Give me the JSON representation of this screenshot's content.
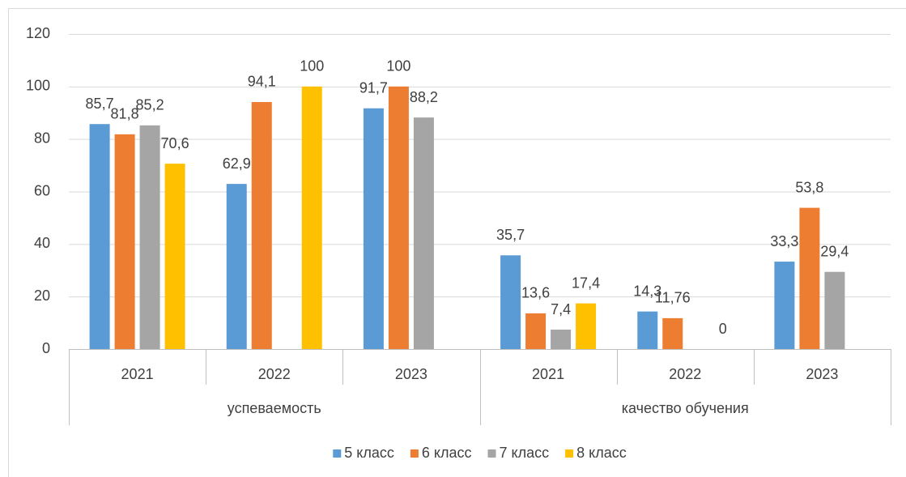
{
  "chart_data": {
    "type": "bar",
    "categories": [
      "2021",
      "2022",
      "2023",
      "2021",
      "2022",
      "2023"
    ],
    "groups": [
      "успеваемость",
      "качество обучения"
    ],
    "series": [
      {
        "name": "5 класс",
        "color": "#5b9bd5",
        "values": [
          85.7,
          62.9,
          91.7,
          35.7,
          14.3,
          33.3
        ],
        "value_labels": [
          "85,7",
          "62,9",
          "91,7",
          "35,7",
          "14,3",
          "33,3"
        ]
      },
      {
        "name": "6 класс",
        "color": "#ed7d31",
        "values": [
          81.8,
          94.1,
          100,
          13.6,
          11.76,
          53.8
        ],
        "value_labels": [
          "81,8",
          "94,1",
          "100",
          "13,6",
          "11,76",
          "53,8"
        ]
      },
      {
        "name": "7 класс",
        "color": "#a5a5a5",
        "values": [
          85.2,
          null,
          88.2,
          7.4,
          null,
          29.4
        ],
        "value_labels": [
          "85,2",
          null,
          "88,2",
          "7,4",
          null,
          "29,4"
        ]
      },
      {
        "name": "8 класс",
        "color": "#ffc000",
        "values": [
          70.6,
          100,
          null,
          17.4,
          0,
          null
        ],
        "value_labels": [
          "70,6",
          "100",
          null,
          "17,4",
          "0",
          null
        ]
      }
    ],
    "ylim": [
      0,
      120
    ],
    "yticks": [
      0,
      20,
      40,
      60,
      80,
      100,
      120
    ],
    "grid": true,
    "legend": "bottom"
  }
}
